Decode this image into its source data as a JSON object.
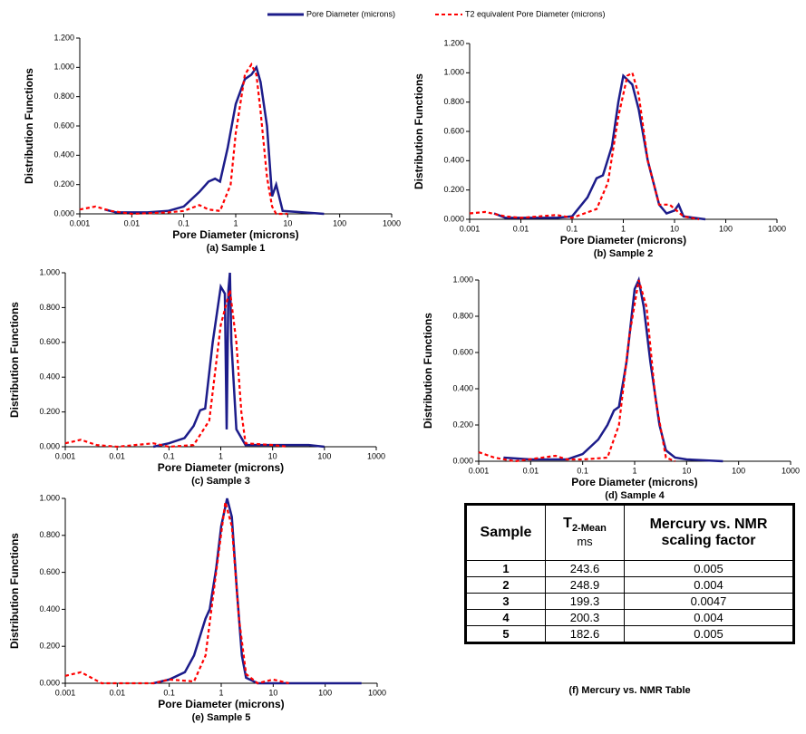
{
  "legend": [
    {
      "name": "Pore Diameter (microns)",
      "color": "#1c1c8a",
      "dash": false
    },
    {
      "name": "T2 equivalent Pore Diameter (microns)",
      "color": "#ff0000",
      "dash": true
    }
  ],
  "chart_data": [
    {
      "type": "line",
      "xscale": "log",
      "x_label": "Pore Diameter (microns)",
      "y_label": "Distribution Functions",
      "caption": "(a) Sample 1",
      "xlim": [
        0.001,
        1000
      ],
      "xticks": [
        0.001,
        0.01,
        0.1,
        1,
        10,
        100,
        1000
      ],
      "ylim": [
        0,
        1.2
      ],
      "yticks": [
        {
          "value": 0,
          "label": "0.000"
        },
        {
          "value": 0.2,
          "label": "0.200"
        },
        {
          "value": 0.4,
          "label": "0.400"
        },
        {
          "value": 0.6,
          "label": "0.600"
        },
        {
          "value": 0.8,
          "label": "0.800"
        },
        {
          "value": 1.0,
          "label": "1.000"
        },
        {
          "value": 1.2,
          "label": "1.200"
        }
      ],
      "series": [
        {
          "color": "#1c1c8a",
          "dash": false,
          "x": [
            0.003,
            0.005,
            0.01,
            0.02,
            0.05,
            0.1,
            0.2,
            0.3,
            0.4,
            0.5,
            0.7,
            1,
            1.5,
            2,
            2.5,
            3,
            4,
            5,
            6,
            8,
            20,
            50
          ],
          "values": [
            0.03,
            0.01,
            0.01,
            0.01,
            0.02,
            0.05,
            0.15,
            0.22,
            0.24,
            0.22,
            0.45,
            0.75,
            0.92,
            0.95,
            1.0,
            0.9,
            0.6,
            0.12,
            0.2,
            0.02,
            0.01,
            0.0
          ]
        },
        {
          "color": "#ff0000",
          "dash": true,
          "x": [
            0.001,
            0.002,
            0.004,
            0.01,
            0.05,
            0.1,
            0.2,
            0.3,
            0.5,
            0.8,
            1,
            1.5,
            2,
            2.5,
            3,
            4,
            5,
            6,
            10
          ],
          "values": [
            0.03,
            0.05,
            0.02,
            0.0,
            0.01,
            0.02,
            0.06,
            0.03,
            0.02,
            0.2,
            0.55,
            0.95,
            1.02,
            0.95,
            0.7,
            0.25,
            0.05,
            0.0,
            0.0
          ]
        }
      ]
    },
    {
      "type": "line",
      "xscale": "log",
      "x_label": "Pore Diameter (microns)",
      "y_label": "Distribution Functions",
      "caption": "(b) Sample 2",
      "xlim": [
        0.001,
        1000
      ],
      "xticks": [
        0.001,
        0.01,
        0.1,
        1,
        10,
        100,
        1000
      ],
      "ylim": [
        0,
        1.2
      ],
      "yticks": [
        {
          "value": 0,
          "label": "0.000"
        },
        {
          "value": 0.2,
          "label": "0.200"
        },
        {
          "value": 0.4,
          "label": "0.400"
        },
        {
          "value": 0.6,
          "label": "0.600"
        },
        {
          "value": 0.8,
          "label": "0.800"
        },
        {
          "value": 1.0,
          "label": "1.000"
        },
        {
          "value": 1.2,
          "label": "1.200"
        }
      ],
      "series": [
        {
          "color": "#1c1c8a",
          "dash": false,
          "x": [
            0.003,
            0.005,
            0.01,
            0.05,
            0.1,
            0.2,
            0.3,
            0.4,
            0.6,
            0.8,
            1,
            1.5,
            2,
            3,
            5,
            7,
            10,
            12,
            15,
            40
          ],
          "values": [
            0.04,
            0.01,
            0.01,
            0.01,
            0.02,
            0.15,
            0.28,
            0.3,
            0.5,
            0.8,
            0.98,
            0.92,
            0.75,
            0.4,
            0.1,
            0.04,
            0.06,
            0.1,
            0.02,
            0.0
          ]
        },
        {
          "color": "#ff0000",
          "dash": true,
          "x": [
            0.001,
            0.002,
            0.005,
            0.01,
            0.05,
            0.1,
            0.3,
            0.5,
            0.8,
            1.2,
            1.5,
            2,
            3,
            5,
            8,
            15,
            30
          ],
          "values": [
            0.04,
            0.05,
            0.02,
            0.01,
            0.03,
            0.01,
            0.07,
            0.25,
            0.7,
            0.98,
            1.0,
            0.85,
            0.4,
            0.1,
            0.1,
            0.02,
            0.0
          ]
        }
      ]
    },
    {
      "type": "line",
      "xscale": "log",
      "x_label": "Pore Diameter (microns)",
      "y_label": "Distribution Functions",
      "caption": "(c) Sample 3",
      "xlim": [
        0.001,
        1000
      ],
      "xticks": [
        0.001,
        0.01,
        0.1,
        1,
        10,
        100,
        1000
      ],
      "ylim": [
        0,
        1.0
      ],
      "yticks": [
        {
          "value": 0,
          "label": "0.000"
        },
        {
          "value": 0.2,
          "label": "0.200"
        },
        {
          "value": 0.4,
          "label": "0.400"
        },
        {
          "value": 0.6,
          "label": "0.600"
        },
        {
          "value": 0.8,
          "label": "0.800"
        },
        {
          "value": 1.0,
          "label": "1.000"
        }
      ],
      "series": [
        {
          "color": "#1c1c8a",
          "dash": false,
          "x": [
            0.05,
            0.1,
            0.2,
            0.3,
            0.4,
            0.5,
            0.7,
            1,
            1.2,
            1.3,
            1.4,
            1.5,
            1.6,
            2,
            3,
            10,
            50,
            100
          ],
          "values": [
            0.0,
            0.02,
            0.05,
            0.12,
            0.21,
            0.22,
            0.6,
            0.92,
            0.88,
            0.1,
            0.9,
            1.0,
            0.6,
            0.1,
            0.01,
            0.01,
            0.01,
            0.0
          ]
        },
        {
          "color": "#ff0000",
          "dash": true,
          "x": [
            0.001,
            0.002,
            0.004,
            0.01,
            0.05,
            0.1,
            0.3,
            0.6,
            1,
            1.5,
            2,
            2.5,
            3,
            10,
            20
          ],
          "values": [
            0.02,
            0.04,
            0.01,
            0.0,
            0.02,
            0.0,
            0.01,
            0.15,
            0.7,
            0.9,
            0.6,
            0.2,
            0.02,
            0.01,
            0.0
          ]
        }
      ]
    },
    {
      "type": "line",
      "xscale": "log",
      "x_label": "Pore Diameter (microns)",
      "y_label": "Distribution Functions",
      "caption": "(d) Sample 4",
      "xlim": [
        0.001,
        1000
      ],
      "xticks": [
        0.001,
        0.01,
        0.1,
        1,
        10,
        100,
        1000
      ],
      "ylim": [
        0,
        1.0
      ],
      "yticks": [
        {
          "value": 0,
          "label": "0.000"
        },
        {
          "value": 0.2,
          "label": "0.200"
        },
        {
          "value": 0.4,
          "label": "0.400"
        },
        {
          "value": 0.6,
          "label": "0.600"
        },
        {
          "value": 0.8,
          "label": "0.800"
        },
        {
          "value": 1.0,
          "label": "1.000"
        }
      ],
      "series": [
        {
          "color": "#1c1c8a",
          "dash": false,
          "x": [
            0.003,
            0.01,
            0.05,
            0.1,
            0.2,
            0.3,
            0.4,
            0.5,
            0.7,
            1,
            1.2,
            1.5,
            2,
            3,
            4,
            6,
            10,
            50
          ],
          "values": [
            0.02,
            0.01,
            0.01,
            0.04,
            0.12,
            0.2,
            0.28,
            0.3,
            0.55,
            0.95,
            1.0,
            0.85,
            0.55,
            0.2,
            0.06,
            0.02,
            0.01,
            0.0
          ]
        },
        {
          "color": "#ff0000",
          "dash": true,
          "x": [
            0.001,
            0.002,
            0.005,
            0.03,
            0.05,
            0.1,
            0.3,
            0.5,
            0.8,
            1.2,
            1.7,
            2.5,
            4,
            6
          ],
          "values": [
            0.05,
            0.02,
            0.0,
            0.03,
            0.01,
            0.01,
            0.02,
            0.2,
            0.7,
            1.0,
            0.85,
            0.35,
            0.02,
            0.0
          ]
        }
      ]
    },
    {
      "type": "line",
      "xscale": "log",
      "x_label": "Pore Diameter (microns)",
      "y_label": "Distribution Functions",
      "caption": "(e) Sample 5",
      "xlim": [
        0.001,
        1000
      ],
      "xticks": [
        0.001,
        0.01,
        0.1,
        1,
        10,
        100,
        1000
      ],
      "ylim": [
        0,
        1.0
      ],
      "yticks": [
        {
          "value": 0,
          "label": "0.000"
        },
        {
          "value": 0.2,
          "label": "0.200"
        },
        {
          "value": 0.4,
          "label": "0.400"
        },
        {
          "value": 0.6,
          "label": "0.600"
        },
        {
          "value": 0.8,
          "label": "0.800"
        },
        {
          "value": 1.0,
          "label": "1.000"
        }
      ],
      "series": [
        {
          "color": "#1c1c8a",
          "dash": false,
          "x": [
            0.05,
            0.1,
            0.2,
            0.3,
            0.5,
            0.6,
            0.8,
            1,
            1.3,
            1.6,
            2,
            2.5,
            3,
            5,
            500
          ],
          "values": [
            0.0,
            0.02,
            0.06,
            0.15,
            0.35,
            0.4,
            0.62,
            0.85,
            1.0,
            0.9,
            0.5,
            0.15,
            0.03,
            0.0,
            0.0
          ]
        },
        {
          "color": "#ff0000",
          "dash": true,
          "x": [
            0.001,
            0.002,
            0.005,
            0.05,
            0.1,
            0.3,
            0.5,
            0.8,
            1.2,
            1.6,
            2.2,
            3,
            5,
            10,
            20
          ],
          "values": [
            0.04,
            0.06,
            0.0,
            0.0,
            0.02,
            0.01,
            0.15,
            0.6,
            0.98,
            0.85,
            0.35,
            0.05,
            0.0,
            0.02,
            0.0
          ]
        }
      ]
    }
  ],
  "table": {
    "columns": [
      "Sample",
      {
        "main": "T",
        "sub": "2-Mean",
        "unit": "ms"
      },
      "Mercury vs. NMR scaling factor"
    ],
    "rows": [
      [
        "1",
        "243.6",
        "0.005"
      ],
      [
        "2",
        "248.9",
        "0.004"
      ],
      [
        "3",
        "199.3",
        "0.0047"
      ],
      [
        "4",
        "200.3",
        "0.004"
      ],
      [
        "5",
        "182.6",
        "0.005"
      ]
    ],
    "caption": "(f) Mercury vs. NMR Table"
  }
}
